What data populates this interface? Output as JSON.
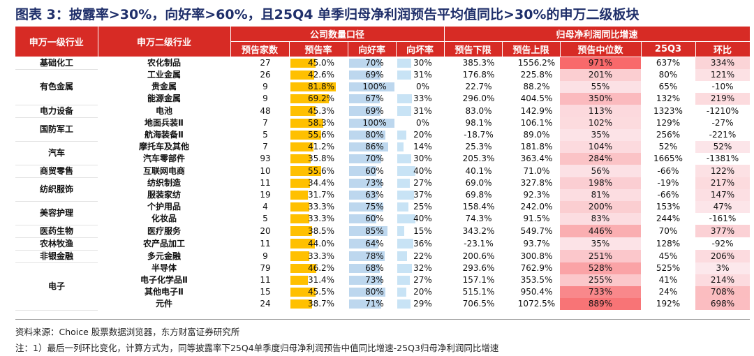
{
  "title": "图表 3：披露率>30%，向好率>60%，且25Q4 单季归母净利润预告平均值同比>30%的申万二级板块",
  "header": {
    "col_sw1": "申万一级行业",
    "col_sw2": "申万二级行业",
    "group_company": "公司数量口径",
    "group_profit": "归母净利润同比增速",
    "count": "预告家数",
    "rate": "预告率",
    "good": "向好率",
    "bad": "向坏率",
    "low": "预告下限",
    "high": "预告上限",
    "mid": "预告中位数",
    "q3": "25Q3",
    "hb": "环比"
  },
  "colors": {
    "header": "#d72b25",
    "rate_bar": "#ffc000",
    "good_bar": "#bdd7ee",
    "bad_bar": "#c8e3f5",
    "mid_heat": "#f8696b",
    "title": "#1f2f6a"
  },
  "industry_groups": [
    {
      "name": "基础化工",
      "span": 1
    },
    {
      "name": "有色金属",
      "span": 3
    },
    {
      "name": "电力设备",
      "span": 1
    },
    {
      "name": "国防军工",
      "span": 2
    },
    {
      "name": "汽车",
      "span": 2
    },
    {
      "name": "商贸零售",
      "span": 1
    },
    {
      "name": "纺织服饰",
      "span": 2
    },
    {
      "name": "美容护理",
      "span": 2
    },
    {
      "name": "医药生物",
      "span": 1
    },
    {
      "name": "农林牧渔",
      "span": 1
    },
    {
      "name": "非银金融",
      "span": 1
    },
    {
      "name": "电子",
      "span": 4
    }
  ],
  "rows": [
    {
      "sw2": "农化制品",
      "count": "27",
      "rate": "45.0%",
      "rate_v": 0.45,
      "good": "70%",
      "good_v": 0.7,
      "bad": "30%",
      "bad_v": 0.3,
      "low": "385.3%",
      "high": "1556.2%",
      "mid": "971%",
      "mid_v": 971,
      "q3": "637%",
      "hb": "334%",
      "hb_v": 334
    },
    {
      "sw2": "工业金属",
      "count": "26",
      "rate": "42.6%",
      "rate_v": 0.426,
      "good": "69%",
      "good_v": 0.69,
      "bad": "31%",
      "bad_v": 0.31,
      "low": "176.8%",
      "high": "225.8%",
      "mid": "201%",
      "mid_v": 201,
      "q3": "80%",
      "hb": "121%",
      "hb_v": 121
    },
    {
      "sw2": "贵金属",
      "count": "9",
      "rate": "81.8%",
      "rate_v": 0.818,
      "good": "100%",
      "good_v": 1.0,
      "bad": "0%",
      "bad_v": 0.0,
      "low": "22.7%",
      "high": "88.2%",
      "mid": "55%",
      "mid_v": 55,
      "q3": "65%",
      "hb": "-10%",
      "hb_v": -10
    },
    {
      "sw2": "能源金属",
      "count": "9",
      "rate": "69.2%",
      "rate_v": 0.692,
      "good": "67%",
      "good_v": 0.67,
      "bad": "33%",
      "bad_v": 0.33,
      "low": "296.0%",
      "high": "404.5%",
      "mid": "350%",
      "mid_v": 350,
      "q3": "132%",
      "hb": "219%",
      "hb_v": 219
    },
    {
      "sw2": "电池",
      "count": "48",
      "rate": "45.3%",
      "rate_v": 0.453,
      "good": "69%",
      "good_v": 0.69,
      "bad": "31%",
      "bad_v": 0.31,
      "low": "83.0%",
      "high": "142.9%",
      "mid": "113%",
      "mid_v": 113,
      "q3": "1323%",
      "hb": "-1210%",
      "hb_v": -1210
    },
    {
      "sw2": "地面兵装Ⅱ",
      "count": "7",
      "rate": "58.3%",
      "rate_v": 0.583,
      "good": "100%",
      "good_v": 1.0,
      "bad": "0%",
      "bad_v": 0.0,
      "low": "98.1%",
      "high": "106.1%",
      "mid": "102%",
      "mid_v": 102,
      "q3": "129%",
      "hb": "-27%",
      "hb_v": -27
    },
    {
      "sw2": "航海装备Ⅱ",
      "count": "5",
      "rate": "55.6%",
      "rate_v": 0.556,
      "good": "80%",
      "good_v": 0.8,
      "bad": "20%",
      "bad_v": 0.2,
      "low": "-18.7%",
      "high": "89.0%",
      "mid": "35%",
      "mid_v": 35,
      "q3": "256%",
      "hb": "-221%",
      "hb_v": -221
    },
    {
      "sw2": "摩托车及其他",
      "count": "7",
      "rate": "41.2%",
      "rate_v": 0.412,
      "good": "86%",
      "good_v": 0.86,
      "bad": "14%",
      "bad_v": 0.14,
      "low": "25.3%",
      "high": "181.8%",
      "mid": "104%",
      "mid_v": 104,
      "q3": "52%",
      "hb": "52%",
      "hb_v": 52
    },
    {
      "sw2": "汽车零部件",
      "count": "93",
      "rate": "35.8%",
      "rate_v": 0.358,
      "good": "70%",
      "good_v": 0.7,
      "bad": "30%",
      "bad_v": 0.3,
      "low": "205.3%",
      "high": "363.4%",
      "mid": "284%",
      "mid_v": 284,
      "q3": "1665%",
      "hb": "-1381%",
      "hb_v": -1381
    },
    {
      "sw2": "互联网电商",
      "count": "10",
      "rate": "55.6%",
      "rate_v": 0.556,
      "good": "60%",
      "good_v": 0.6,
      "bad": "40%",
      "bad_v": 0.4,
      "low": "40.1%",
      "high": "71.0%",
      "mid": "56%",
      "mid_v": 56,
      "q3": "-66%",
      "hb": "122%",
      "hb_v": 122
    },
    {
      "sw2": "纺织制造",
      "count": "11",
      "rate": "34.4%",
      "rate_v": 0.344,
      "good": "73%",
      "good_v": 0.73,
      "bad": "27%",
      "bad_v": 0.27,
      "low": "69.0%",
      "high": "327.8%",
      "mid": "198%",
      "mid_v": 198,
      "q3": "-19%",
      "hb": "217%",
      "hb_v": 217
    },
    {
      "sw2": "服装家纺",
      "count": "19",
      "rate": "31.7%",
      "rate_v": 0.317,
      "good": "63%",
      "good_v": 0.63,
      "bad": "37%",
      "bad_v": 0.37,
      "low": "69.8%",
      "high": "92.3%",
      "mid": "81%",
      "mid_v": 81,
      "q3": "-66%",
      "hb": "147%",
      "hb_v": 147
    },
    {
      "sw2": "个护用品",
      "count": "4",
      "rate": "33.3%",
      "rate_v": 0.333,
      "good": "75%",
      "good_v": 0.75,
      "bad": "25%",
      "bad_v": 0.25,
      "low": "158.4%",
      "high": "242.0%",
      "mid": "200%",
      "mid_v": 200,
      "q3": "153%",
      "hb": "47%",
      "hb_v": 47
    },
    {
      "sw2": "化妆品",
      "count": "5",
      "rate": "33.3%",
      "rate_v": 0.333,
      "good": "60%",
      "good_v": 0.6,
      "bad": "40%",
      "bad_v": 0.4,
      "low": "74.3%",
      "high": "91.5%",
      "mid": "83%",
      "mid_v": 83,
      "q3": "244%",
      "hb": "-161%",
      "hb_v": -161
    },
    {
      "sw2": "医疗服务",
      "count": "20",
      "rate": "38.5%",
      "rate_v": 0.385,
      "good": "85%",
      "good_v": 0.85,
      "bad": "15%",
      "bad_v": 0.15,
      "low": "343.2%",
      "high": "549.7%",
      "mid": "446%",
      "mid_v": 446,
      "q3": "70%",
      "hb": "377%",
      "hb_v": 377
    },
    {
      "sw2": "农产品加工",
      "count": "11",
      "rate": "44.0%",
      "rate_v": 0.44,
      "good": "64%",
      "good_v": 0.64,
      "bad": "36%",
      "bad_v": 0.36,
      "low": "-23.1%",
      "high": "93.7%",
      "mid": "35%",
      "mid_v": 35,
      "q3": "128%",
      "hb": "-92%",
      "hb_v": -92
    },
    {
      "sw2": "多元金融",
      "count": "9",
      "rate": "33.3%",
      "rate_v": 0.333,
      "good": "78%",
      "good_v": 0.78,
      "bad": "22%",
      "bad_v": 0.22,
      "low": "200.6%",
      "high": "300.8%",
      "mid": "251%",
      "mid_v": 251,
      "q3": "45%",
      "hb": "206%",
      "hb_v": 206
    },
    {
      "sw2": "半导体",
      "count": "79",
      "rate": "46.2%",
      "rate_v": 0.462,
      "good": "68%",
      "good_v": 0.68,
      "bad": "32%",
      "bad_v": 0.32,
      "low": "293.6%",
      "high": "762.9%",
      "mid": "528%",
      "mid_v": 528,
      "q3": "525%",
      "hb": "3%",
      "hb_v": 3
    },
    {
      "sw2": "电子化学品Ⅱ",
      "count": "11",
      "rate": "31.4%",
      "rate_v": 0.314,
      "good": "73%",
      "good_v": 0.73,
      "bad": "27%",
      "bad_v": 0.27,
      "low": "157.1%",
      "high": "353.5%",
      "mid": "255%",
      "mid_v": 255,
      "q3": "41%",
      "hb": "214%",
      "hb_v": 214
    },
    {
      "sw2": "其他电子Ⅱ",
      "count": "15",
      "rate": "45.5%",
      "rate_v": 0.455,
      "good": "80%",
      "good_v": 0.8,
      "bad": "20%",
      "bad_v": 0.2,
      "low": "515.1%",
      "high": "950.4%",
      "mid": "733%",
      "mid_v": 733,
      "q3": "24%",
      "hb": "708%",
      "hb_v": 708
    },
    {
      "sw2": "元件",
      "count": "24",
      "rate": "38.7%",
      "rate_v": 0.387,
      "good": "71%",
      "good_v": 0.71,
      "bad": "29%",
      "bad_v": 0.29,
      "low": "706.5%",
      "high": "1072.5%",
      "mid": "889%",
      "mid_v": 889,
      "q3": "192%",
      "hb": "698%",
      "hb_v": 698
    }
  ],
  "source": "资料来源：Choice 股票数据浏览器，东方财富证券研究所",
  "note": "注：1）最后一列环比变化，计算方式为，同等披露率下25Q4单季度归母净利润预告中值同比增速-25Q3归母净利润同比增速"
}
